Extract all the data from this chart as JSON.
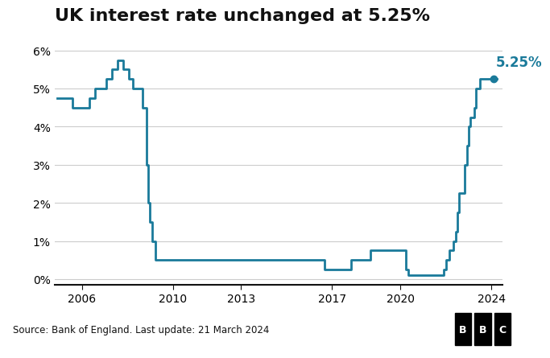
{
  "title": "UK interest rate unchanged at 5.25%",
  "source_text": "Source: Bank of England. Last update: 21 March 2024",
  "line_color": "#1a7a9a",
  "annotation_color": "#1a7a9a",
  "annotation_text": "5.25%",
  "background_color": "#ffffff",
  "grid_color": "#cccccc",
  "bottom_bar_color": "#e0e0e0",
  "yticks": [
    0,
    1,
    2,
    3,
    4,
    5,
    6
  ],
  "ytick_labels": [
    "0%",
    "1%",
    "2%",
    "3%",
    "4%",
    "5%",
    "6%"
  ],
  "xticks": [
    2006,
    2010,
    2013,
    2017,
    2020,
    2024
  ],
  "xlim": [
    2004.8,
    2024.5
  ],
  "ylim": [
    -0.15,
    6.5
  ],
  "rates": [
    [
      2004.917,
      4.75
    ],
    [
      2005.25,
      4.75
    ],
    [
      2005.583,
      4.5
    ],
    [
      2006.083,
      4.5
    ],
    [
      2006.333,
      4.75
    ],
    [
      2006.583,
      5.0
    ],
    [
      2007.083,
      5.25
    ],
    [
      2007.333,
      5.5
    ],
    [
      2007.583,
      5.75
    ],
    [
      2007.833,
      5.5
    ],
    [
      2008.083,
      5.25
    ],
    [
      2008.25,
      5.0
    ],
    [
      2008.667,
      4.5
    ],
    [
      2008.833,
      3.0
    ],
    [
      2008.917,
      2.0
    ],
    [
      2009.0,
      1.5
    ],
    [
      2009.083,
      1.0
    ],
    [
      2009.25,
      0.5
    ],
    [
      2016.583,
      0.5
    ],
    [
      2016.667,
      0.25
    ],
    [
      2017.083,
      0.25
    ],
    [
      2017.833,
      0.5
    ],
    [
      2018.667,
      0.75
    ],
    [
      2019.667,
      0.75
    ],
    [
      2020.083,
      0.75
    ],
    [
      2020.25,
      0.25
    ],
    [
      2020.333,
      0.1
    ],
    [
      2021.75,
      0.1
    ],
    [
      2021.917,
      0.25
    ],
    [
      2022.0,
      0.5
    ],
    [
      2022.167,
      0.75
    ],
    [
      2022.333,
      1.0
    ],
    [
      2022.417,
      1.25
    ],
    [
      2022.5,
      1.75
    ],
    [
      2022.583,
      2.25
    ],
    [
      2022.833,
      3.0
    ],
    [
      2022.917,
      3.5
    ],
    [
      2023.0,
      4.0
    ],
    [
      2023.083,
      4.25
    ],
    [
      2023.25,
      4.5
    ],
    [
      2023.333,
      5.0
    ],
    [
      2023.5,
      5.25
    ],
    [
      2024.25,
      5.25
    ]
  ],
  "dot_x": 2024.08,
  "dot_y": 5.25,
  "title_fontsize": 16,
  "axis_fontsize": 10,
  "annotation_fontsize": 12
}
